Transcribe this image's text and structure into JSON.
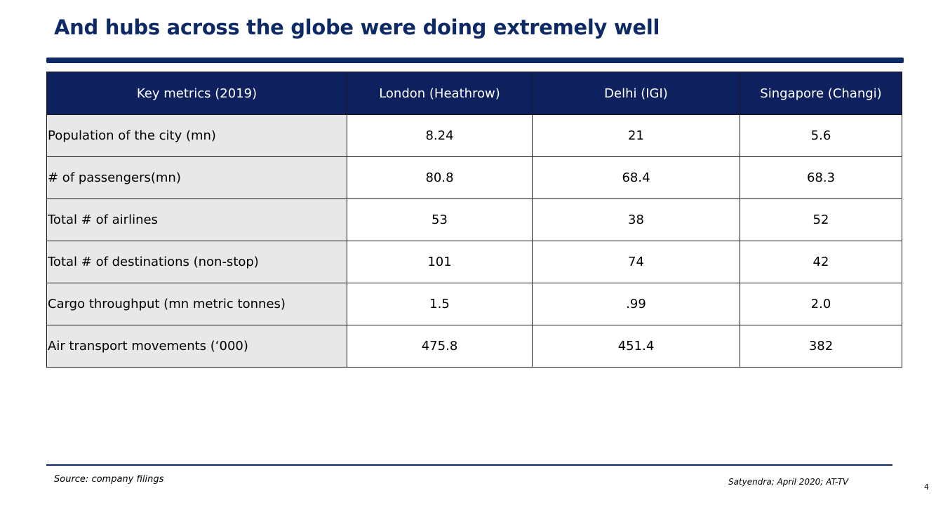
{
  "slide": {
    "title": "And hubs across the globe were doing extremely well",
    "source": "Source: company filings",
    "credit": "Satyendra; April 2020;  AT-TV",
    "page_number": "4"
  },
  "table": {
    "headers": [
      "Key metrics (2019)",
      "London (Heathrow)",
      "Delhi (IGI)",
      "Singapore (Changi)"
    ],
    "rows": [
      [
        "Population of the city (mn)",
        "8.24",
        "21",
        "5.6"
      ],
      [
        "# of passengers(mn)",
        "80.8",
        "68.4",
        "68.3"
      ],
      [
        "Total # of airlines",
        "53",
        "38",
        "52"
      ],
      [
        "Total # of destinations (non-stop)",
        "101",
        "74",
        "42"
      ],
      [
        "Cargo throughput (mn metric tonnes)",
        "1.5",
        ".99",
        "2.0"
      ],
      [
        "Air transport movements (‘000)",
        "475.8",
        "451.4",
        "382"
      ]
    ]
  },
  "colors": {
    "title": "#0d2a66",
    "header_bg": "#0e205e",
    "label_bg": "#e8e8e8"
  }
}
